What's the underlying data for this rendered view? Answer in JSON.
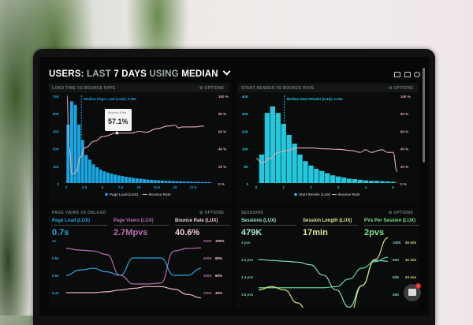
{
  "header": {
    "title_a": "USERS: ",
    "title_b": "LAST ",
    "title_c": "7 DAYS ",
    "title_d": "USING ",
    "title_e": "MEDIAN",
    "chevron": "chevron-down-icon",
    "icons": [
      "monitor-icon",
      "expand-icon",
      "help-icon"
    ]
  },
  "options_label": "OPTIONS",
  "colors": {
    "bars1": "#1ba6e2",
    "bars2": "#23c8dc",
    "bounce": "#e9a9b8",
    "screen": "#060707"
  },
  "panels": [
    {
      "title": "LOAD TIME VS BOUNCE RATE",
      "median_label": "Median Page Load (LUX): 2.09s",
      "legend": [
        "Page Load (LUX)",
        "Bounce Rate"
      ],
      "tooltip": {
        "label": "Bounce Rate",
        "value": "57.1%"
      }
    },
    {
      "title": "START RENDER VS BOUNCE RATE",
      "median_label": "Median Start Render (LUX): 1.03s",
      "legend": [
        "Start Render (LUX)",
        "Bounce Rate"
      ]
    },
    {
      "title": "PAGE VIEWS VS ONLOAD",
      "kpis": [
        {
          "label": "Page Load (LUX)",
          "value": "0.7s",
          "color": "#2ba2de"
        },
        {
          "label": "Page Views (LUX)",
          "value": "2.7Mpvs",
          "color": "#b86db2"
        },
        {
          "label": "Bounce Rate (LUX)",
          "value": "40.6%",
          "color": "#f3cfd6"
        }
      ]
    },
    {
      "title": "SESSIONS",
      "kpis": [
        {
          "label": "Sessions (LUX)",
          "value": "479K",
          "color": "#a6e6cc"
        },
        {
          "label": "Session Length (LUX)",
          "value": "17min",
          "color": "#dbe89a"
        },
        {
          "label": "PVs Per Session (LUX)",
          "value": "2pvs",
          "color": "#7fe08c"
        }
      ]
    }
  ],
  "chart_data": [
    {
      "type": "bar",
      "name": "load-time-vs-bounce-rate",
      "bin_width": 0.5,
      "x_start": 0,
      "bars": [
        50,
        70,
        67,
        50,
        37,
        24,
        20,
        16,
        13.5,
        11.5,
        10,
        9,
        8,
        7.2,
        6.5,
        6,
        5.4,
        4.9,
        4.4,
        4,
        3.6,
        3.3,
        3,
        2.7,
        2.5,
        2.3,
        2.1,
        1.9,
        1.8,
        1.6,
        1.5,
        1.4,
        1.3,
        1.2,
        1.1,
        1,
        1,
        0.9,
        0.8,
        0.8
      ],
      "median": 2.09,
      "xlim": [
        0,
        20
      ],
      "ylim": [
        0,
        75
      ],
      "y2lim": [
        0,
        100
      ],
      "xticks": [
        "0",
        "2.5",
        "5",
        "7.5",
        "10",
        "12.5",
        "15",
        "17.5"
      ],
      "xtick_values": [
        0,
        2.5,
        5,
        7.5,
        10,
        12.5,
        15,
        17.5
      ],
      "yticks": [
        "75K",
        "60K",
        "45K",
        "30K",
        "15K",
        "0"
      ],
      "y2ticks": [
        "100 %",
        "80 %",
        "60 %",
        "40 %",
        "20 %",
        "0 %"
      ],
      "bounce": [
        [
          0.1,
          100
        ],
        [
          0.4,
          40
        ],
        [
          0.8,
          10
        ],
        [
          1.3,
          12
        ],
        [
          2,
          30
        ],
        [
          2.5,
          40
        ],
        [
          4,
          48
        ],
        [
          5,
          53
        ],
        [
          7,
          57.1
        ],
        [
          9,
          57
        ],
        [
          10,
          59
        ],
        [
          11,
          58
        ],
        [
          12.5,
          62
        ],
        [
          14,
          65
        ],
        [
          15,
          66
        ],
        [
          15.5,
          63
        ],
        [
          16,
          64
        ],
        [
          17.5,
          64
        ],
        [
          19,
          65
        ]
      ],
      "tooltip_x": 7
    },
    {
      "type": "bar",
      "name": "start-render-vs-bounce-rate",
      "bin_width": 0.2,
      "x_start": 0.1,
      "bars": [
        13,
        32,
        35,
        32,
        27,
        22,
        18,
        13,
        10,
        8,
        6.5,
        5.5,
        4.5,
        3.5,
        3,
        2.5,
        2,
        1.8,
        1.5,
        1.2,
        1,
        1,
        0.8,
        0.7,
        0.6
      ],
      "median": 1.03,
      "xlim": [
        0,
        5.1
      ],
      "ylim": [
        0,
        40
      ],
      "y2lim": [
        0,
        100
      ],
      "xticks": [
        "0",
        "1",
        "2",
        "3",
        "4",
        "5"
      ],
      "xtick_values": [
        0,
        1,
        2,
        3,
        4,
        5
      ],
      "yticks": [
        "40K",
        "32K",
        "24K",
        "16K",
        "8K",
        "0"
      ],
      "y2ticks": [
        "100 %",
        "80 %",
        "60 %",
        "40 %",
        "20 %",
        "0 %"
      ],
      "bounce": [
        [
          0,
          28
        ],
        [
          0.2,
          23
        ],
        [
          0.5,
          28
        ],
        [
          0.8,
          35
        ],
        [
          1.1,
          37
        ],
        [
          1.5,
          40
        ],
        [
          2,
          40
        ],
        [
          2.5,
          39
        ],
        [
          3,
          38.5
        ],
        [
          3.5,
          37
        ],
        [
          3.8,
          35
        ],
        [
          4,
          38
        ],
        [
          4.2,
          35
        ],
        [
          4.6,
          38
        ],
        [
          4.8,
          35
        ],
        [
          5,
          35
        ],
        [
          5.15,
          13
        ]
      ]
    },
    {
      "type": "line",
      "name": "page-views-vs-onload",
      "yticks": [
        "1s",
        "0.8s",
        "0.6s",
        "0.4s"
      ],
      "y2ticks": [
        "500K",
        "400K",
        "300K",
        "200K"
      ],
      "y3ticks": [
        "100%",
        "80%",
        "60%",
        "40%"
      ],
      "series": [
        {
          "axis": [
            0.4,
            1.0
          ],
          "color": "#2aa6dc",
          "values": [
            0.6,
            0.66,
            0.68,
            0.64,
            0.6,
            0.8,
            0.8,
            0.8,
            0.6,
            0.6,
            0.68
          ]
        },
        {
          "axis": [
            200,
            500
          ],
          "color": "#b56cb0",
          "values": [
            455,
            445,
            440,
            420,
            300,
            250,
            250,
            255,
            440,
            455,
            458
          ]
        },
        {
          "axis": [
            40,
            100
          ],
          "color": "#f0b6c4",
          "values": [
            40,
            40,
            40,
            41,
            43,
            45,
            47,
            47,
            44,
            38,
            34
          ]
        }
      ]
    },
    {
      "type": "line",
      "name": "sessions",
      "yticks": [
        "4 pvs",
        "3.2 pvs",
        "2.4 pvs",
        "1.6 pvs"
      ],
      "y2ticks": [
        "100K",
        "80K",
        "60K",
        "40K"
      ],
      "y3ticks": [
        "40 min",
        "32 min",
        "24 min",
        "16 min"
      ],
      "series": [
        {
          "axis": [
            40,
            100
          ],
          "color": "#7fd8c4",
          "values": [
            80,
            79,
            78,
            77,
            74,
            62,
            45,
            25,
            50,
            79,
            78
          ]
        },
        {
          "axis": [
            1.6,
            4
          ],
          "color": "#5fd39a",
          "values": [
            1.9,
            1.9,
            1.9,
            1.9,
            1.9,
            1.9,
            1.95,
            2.3,
            2.8,
            3.1,
            3.3
          ]
        },
        {
          "axis": [
            16,
            40
          ],
          "color": "#d6e07a",
          "values": [
            18,
            19.5,
            18,
            12,
            6,
            2,
            0,
            6,
            20,
            32,
            42
          ]
        }
      ]
    }
  ],
  "chat": {
    "icon": "chat-icon",
    "badge": "1"
  }
}
